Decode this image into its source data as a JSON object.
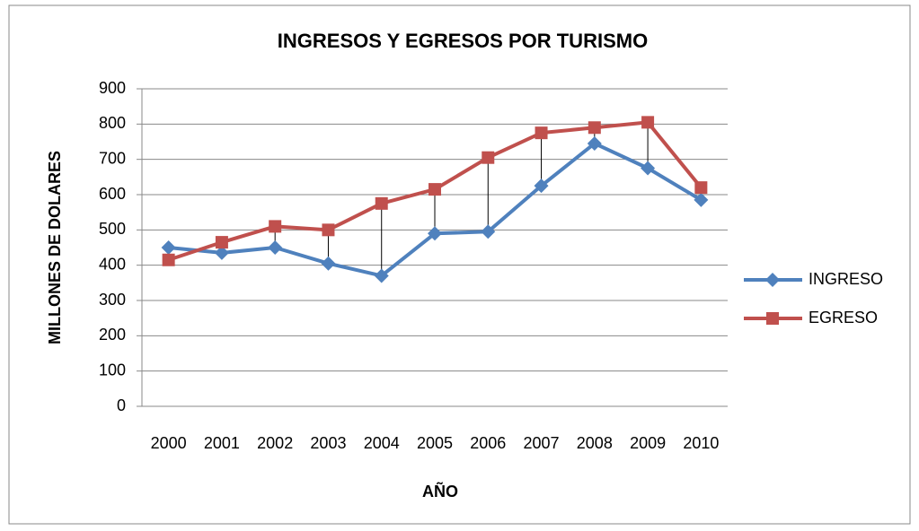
{
  "chart_data": {
    "type": "line",
    "title": "INGRESOS Y EGRESOS POR TURISMO",
    "x_label": "AÑO",
    "y_label": "MILLONES DE DOLARES",
    "categories": [
      "2000",
      "2001",
      "2002",
      "2003",
      "2004",
      "2005",
      "2006",
      "2007",
      "2008",
      "2009",
      "2010"
    ],
    "series": [
      {
        "name": "INGRESO",
        "color": "#4f81bd",
        "marker": "diamond",
        "values": [
          450,
          435,
          450,
          405,
          370,
          490,
          495,
          625,
          745,
          675,
          585
        ]
      },
      {
        "name": "EGRESO",
        "color": "#c0504d",
        "marker": "square",
        "values": [
          415,
          465,
          510,
          500,
          575,
          615,
          705,
          775,
          790,
          805,
          620
        ]
      }
    ],
    "ylim": [
      0,
      900
    ],
    "yticks": [
      0,
      100,
      200,
      300,
      400,
      500,
      600,
      700,
      800,
      900
    ],
    "grid": true,
    "high_low_lines": true,
    "legend": "right"
  }
}
